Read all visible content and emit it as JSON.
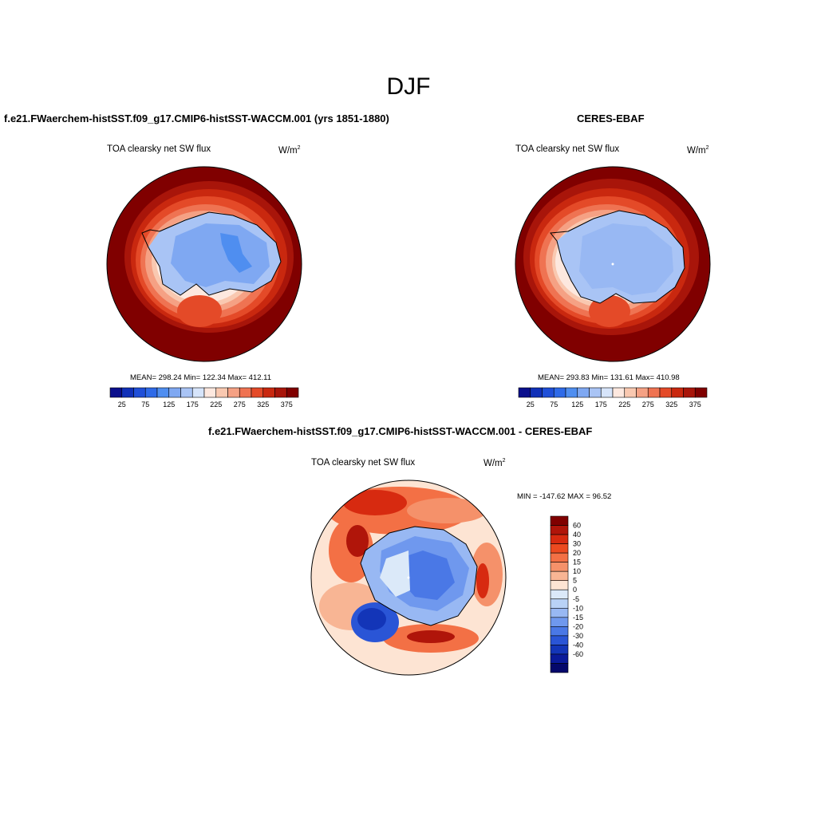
{
  "page_title": "DJF",
  "panels": [
    {
      "title": "f.e21.FWaerchem-histSST.f09_g17.CMIP6-histSST-WACCM.001 (yrs 1851-1880)",
      "variable": "TOA clearsky net SW flux",
      "units_base": "W/m",
      "units_exp": "2",
      "stats": "MEAN= 298.24  Min= 122.34  Max= 412.11"
    },
    {
      "title": "CERES-EBAF",
      "variable": "TOA clearsky net SW flux",
      "units_base": "W/m",
      "units_exp": "2",
      "stats": "MEAN= 293.83  Min= 131.61  Max= 410.98"
    },
    {
      "title": "f.e21.FWaerchem-histSST.f09_g17.CMIP6-histSST-WACCM.001 - CERES-EBAF",
      "variable": "TOA clearsky net SW flux",
      "units_base": "W/m",
      "units_exp": "2",
      "stats": "MIN = -147.62 MAX =  96.52"
    }
  ],
  "colorbar_abs": {
    "colors": [
      "#0a0f8c",
      "#1030b8",
      "#1f4fd8",
      "#2e6ae8",
      "#4f8ef0",
      "#7fa8f2",
      "#a9c4f5",
      "#d6e4fa",
      "#fde8df",
      "#f9c8b0",
      "#f5a184",
      "#ef7352",
      "#e44a28",
      "#c9280f",
      "#a8150a",
      "#800000"
    ],
    "tick_labels": [
      "25",
      "75",
      "125",
      "175",
      "225",
      "275",
      "325",
      "375"
    ]
  },
  "colorbar_diff": {
    "colors": [
      "#800000",
      "#b0150a",
      "#d72a10",
      "#ec4a20",
      "#f37045",
      "#f5916a",
      "#f8b594",
      "#fde4d3",
      "#dbe9f9",
      "#b9d2f6",
      "#98b8f3",
      "#6f98ee",
      "#4a78e6",
      "#2a55d6",
      "#1335b8",
      "#0a1a9a",
      "#05086b"
    ],
    "tick_labels": [
      "60",
      "40",
      "30",
      "20",
      "15",
      "10",
      "5",
      "0",
      "-5",
      "-10",
      "-15",
      "-20",
      "-30",
      "-40",
      "-60"
    ]
  },
  "chart_data": [
    {
      "type": "heatmap",
      "projection": "south polar stereographic",
      "title": "f.e21.FWaerchem-histSST.f09_g17.CMIP6-histSST-WACCM.001 (yrs 1851-1880)",
      "variable": "TOA clearsky net SW flux",
      "units": "W/m2",
      "mean": 298.24,
      "min": 122.34,
      "max": 412.11,
      "levels": [
        25,
        50,
        75,
        100,
        125,
        150,
        175,
        200,
        225,
        250,
        275,
        300,
        325,
        350,
        375
      ]
    },
    {
      "type": "heatmap",
      "projection": "south polar stereographic",
      "title": "CERES-EBAF",
      "variable": "TOA clearsky net SW flux",
      "units": "W/m2",
      "mean": 293.83,
      "min": 131.61,
      "max": 410.98,
      "levels": [
        25,
        50,
        75,
        100,
        125,
        150,
        175,
        200,
        225,
        250,
        275,
        300,
        325,
        350,
        375
      ]
    },
    {
      "type": "heatmap",
      "projection": "south polar stereographic",
      "title": "f.e21.FWaerchem-histSST.f09_g17.CMIP6-histSST-WACCM.001 - CERES-EBAF",
      "variable": "TOA clearsky net SW flux",
      "units": "W/m2",
      "min": -147.62,
      "max": 96.52,
      "levels": [
        60,
        40,
        30,
        20,
        15,
        10,
        5,
        0,
        -5,
        -10,
        -15,
        -20,
        -30,
        -40,
        -60
      ]
    }
  ]
}
